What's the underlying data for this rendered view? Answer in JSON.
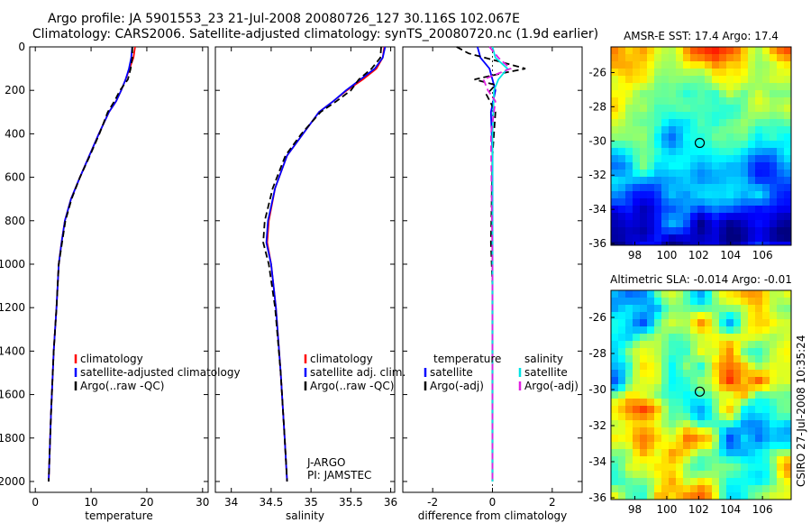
{
  "titles": {
    "line1": "Argo profile: JA 5901553_23 21-Jul-2008 20080726_127 30.116S 102.067E",
    "line2": "Climatology: CARS2006. Satellite-adjusted climatology: synTS_20080720.nc (1.9d earlier)"
  },
  "credit": "CSIRO 27-Jul-2008 10:35:24",
  "colors": {
    "climatology": "#ff0000",
    "satellite": "#0000ff",
    "argo": "#000000",
    "cyan": "#00e5e5",
    "magenta": "#e020e0"
  },
  "chart_data": [
    {
      "type": "line",
      "name": "temperature-panel",
      "xlabel": "temperature",
      "ylabel": "",
      "xlim": [
        -1,
        31
      ],
      "ylim": [
        2050,
        0
      ],
      "xticks": [
        0,
        10,
        20,
        30
      ],
      "yticks": [
        0,
        200,
        400,
        600,
        800,
        1000,
        1200,
        1400,
        1600,
        1800,
        2000
      ],
      "legend": [
        "climatology",
        "satellite-adjusted climatology",
        "Argo(..raw -QC)"
      ],
      "series": [
        {
          "name": "climatology",
          "style": "solid",
          "color": "#ff0000",
          "x": [
            17.9,
            17.6,
            16.9,
            16.2,
            15.4,
            14.5,
            13.2,
            11.4,
            9.7,
            8.0,
            6.4,
            5.3,
            4.7,
            4.2,
            3.8,
            3.3,
            2.8,
            2.4
          ],
          "y": [
            0,
            50,
            100,
            150,
            200,
            250,
            300,
            400,
            500,
            600,
            700,
            800,
            900,
            1000,
            1200,
            1400,
            1700,
            2000
          ]
        },
        {
          "name": "satellite-adjusted climatology",
          "style": "solid",
          "color": "#0000ff",
          "x": [
            17.4,
            17.2,
            16.8,
            16.2,
            15.4,
            14.5,
            13.2,
            11.4,
            9.7,
            8.0,
            6.4,
            5.3,
            4.7,
            4.2,
            3.8,
            3.3,
            2.8,
            2.4
          ],
          "y": [
            0,
            50,
            100,
            150,
            200,
            250,
            300,
            400,
            500,
            600,
            700,
            800,
            900,
            1000,
            1200,
            1400,
            1700,
            2000
          ]
        },
        {
          "name": "Argo",
          "style": "dashed",
          "color": "#000000",
          "x": [
            17.4,
            17.4,
            17.1,
            16.6,
            15.2,
            14.2,
            13.0,
            11.5,
            9.8,
            8.0,
            6.5,
            5.4,
            4.8,
            4.2,
            3.8,
            3.3,
            2.8,
            2.4
          ],
          "y": [
            0,
            50,
            100,
            150,
            200,
            250,
            300,
            400,
            500,
            600,
            700,
            800,
            900,
            1000,
            1200,
            1400,
            1700,
            2000
          ]
        }
      ]
    },
    {
      "type": "line",
      "name": "salinity-panel",
      "xlabel": "salinity",
      "xlim": [
        33.8,
        36.05
      ],
      "ylim": [
        2050,
        0
      ],
      "xticks": [
        34,
        34.5,
        35,
        35.5,
        36
      ],
      "legend": [
        "climatology",
        "satellite adj. clim.",
        "Argo(..raw -QC)"
      ],
      "annotation": [
        "J-ARGO",
        "PI: JAMSTEC"
      ],
      "series": [
        {
          "name": "climatology",
          "style": "solid",
          "color": "#ff0000",
          "x": [
            35.92,
            35.9,
            35.82,
            35.65,
            35.45,
            35.28,
            35.1,
            34.9,
            34.7,
            34.55,
            34.47,
            34.45,
            34.5,
            34.56,
            34.62,
            34.67,
            34.7
          ],
          "y": [
            0,
            50,
            100,
            150,
            200,
            250,
            300,
            400,
            500,
            650,
            800,
            900,
            1000,
            1200,
            1500,
            1800,
            2000
          ]
        },
        {
          "name": "satellite adj. clim.",
          "style": "solid",
          "color": "#0000ff",
          "x": [
            35.93,
            35.9,
            35.8,
            35.62,
            35.44,
            35.28,
            35.1,
            34.9,
            34.7,
            34.55,
            34.46,
            34.44,
            34.5,
            34.56,
            34.62,
            34.67,
            34.7
          ],
          "y": [
            0,
            50,
            100,
            150,
            200,
            250,
            300,
            400,
            500,
            650,
            800,
            900,
            1000,
            1200,
            1500,
            1800,
            2000
          ]
        },
        {
          "name": "Argo",
          "style": "dashed",
          "color": "#000000",
          "x": [
            35.88,
            35.87,
            35.76,
            35.6,
            35.5,
            35.32,
            35.12,
            34.88,
            34.68,
            34.52,
            34.42,
            34.4,
            34.47,
            34.55,
            34.62,
            34.67,
            34.7
          ],
          "y": [
            0,
            50,
            100,
            150,
            200,
            250,
            300,
            400,
            500,
            650,
            800,
            900,
            1000,
            1200,
            1500,
            1800,
            2000
          ]
        }
      ]
    },
    {
      "type": "line",
      "name": "difference-panel",
      "xlabel": "difference from climatology",
      "xlim": [
        -3,
        3
      ],
      "ylim": [
        2050,
        0
      ],
      "xticks": [
        -2,
        0,
        2
      ],
      "legend_left_title": "temperature",
      "legend_right_title": "salinity",
      "legend_left": [
        "satellite",
        "Argo(-adj)"
      ],
      "legend_right": [
        "satellite",
        "Argo(-adj)"
      ],
      "series": [
        {
          "name": "temperature satellite",
          "style": "solid",
          "color": "#0000ff",
          "x": [
            -0.5,
            -0.4,
            -0.1,
            0.0,
            0.1,
            -0.05,
            0.0,
            0.0,
            0.0,
            0.0
          ],
          "y": [
            0,
            50,
            100,
            150,
            200,
            300,
            500,
            1000,
            1500,
            2000
          ]
        },
        {
          "name": "temperature Argo(-adj)",
          "style": "dashed",
          "color": "#000000",
          "x": [
            -1.2,
            -0.8,
            0.3,
            1.1,
            0.2,
            -0.6,
            0.1,
            -0.2,
            0.1,
            0.0,
            -0.05,
            0.0,
            0.0,
            0.0
          ],
          "y": [
            0,
            30,
            70,
            100,
            125,
            150,
            175,
            220,
            300,
            500,
            900,
            1100,
            1500,
            2000
          ]
        },
        {
          "name": "salinity satellite",
          "style": "solid",
          "color": "#00e5e5",
          "x": [
            0.0,
            0.1,
            0.5,
            0.2,
            0.05,
            0.0,
            0.0,
            0.0
          ],
          "y": [
            0,
            50,
            100,
            150,
            200,
            400,
            1000,
            2000
          ]
        },
        {
          "name": "salinity Argo(-adj)",
          "style": "dashed",
          "color": "#e020e0",
          "x": [
            -0.1,
            0.2,
            0.6,
            -0.3,
            -0.15,
            0.1,
            -0.05,
            0.0,
            0.0
          ],
          "y": [
            0,
            50,
            100,
            150,
            200,
            250,
            400,
            1000,
            2000
          ]
        }
      ]
    },
    {
      "type": "heatmap",
      "name": "sst-map",
      "title": "AMSR-E SST: 17.4 Argo: 17.4",
      "xlim": [
        96.5,
        107.8
      ],
      "ylim": [
        -36.1,
        -24.5
      ],
      "xticks": [
        98,
        100,
        102,
        104,
        106
      ],
      "yticks": [
        -26,
        -28,
        -30,
        -32,
        -34,
        -36
      ],
      "marker": {
        "lon": 102.067,
        "lat": -30.116
      }
    },
    {
      "type": "heatmap",
      "name": "sla-map",
      "title": "Altimetric SLA: -0.014 Argo: -0.01",
      "xlim": [
        96.5,
        107.8
      ],
      "ylim": [
        -36.1,
        -24.5
      ],
      "xticks": [
        98,
        100,
        102,
        104,
        106
      ],
      "yticks": [
        -26,
        -28,
        -30,
        -32,
        -34,
        -36
      ],
      "marker": {
        "lon": 102.067,
        "lat": -30.116
      }
    }
  ]
}
